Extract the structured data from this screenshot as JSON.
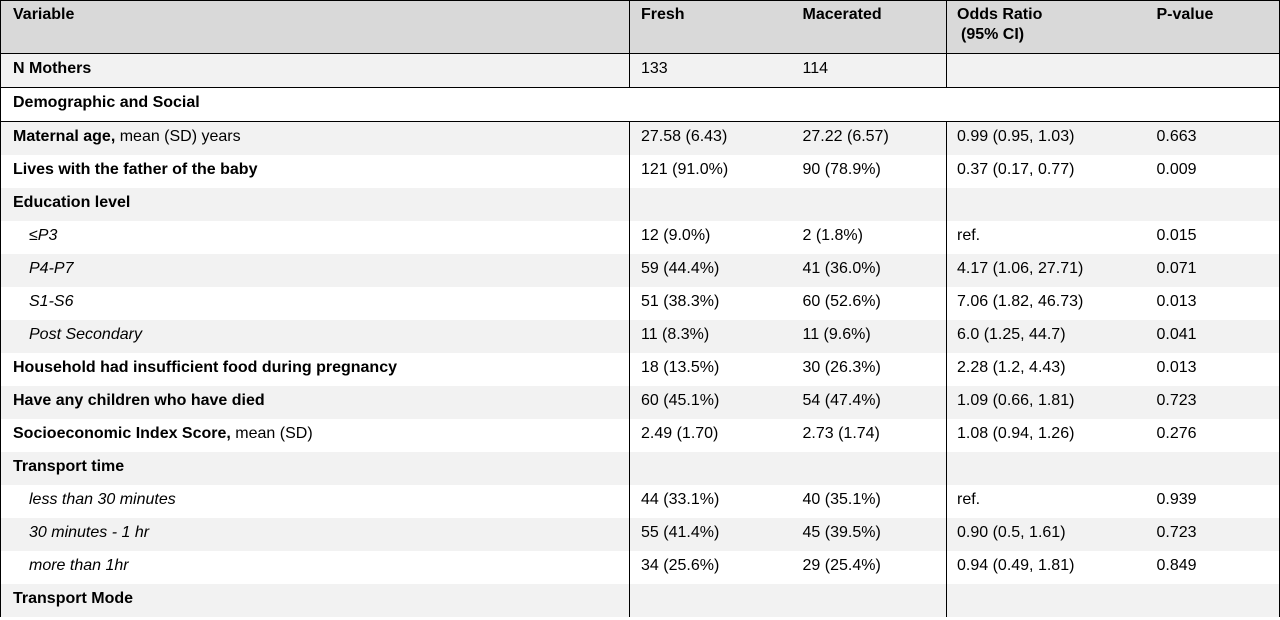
{
  "header": {
    "variable": "Variable",
    "fresh": "Fresh",
    "macerated": "Macerated",
    "odds_ratio": "Odds Ratio",
    "odds_ratio_ci": "(95% CI)",
    "p_value": "P-value"
  },
  "n_mothers": {
    "label": "N Mothers",
    "fresh": "133",
    "macerated": "114",
    "odds_ratio": "",
    "p_value": ""
  },
  "section_title": "Demographic and Social",
  "rows": [
    {
      "bold": "Maternal age,",
      "normal": " mean (SD) years",
      "fresh": "27.58 (6.43)",
      "macerated": "27.22 (6.57)",
      "odds_ratio": "0.99 (0.95, 1.03)",
      "p_value": "0.663"
    },
    {
      "bold": "Lives with the father of the baby",
      "normal": "",
      "fresh": "121 (91.0%)",
      "macerated": "90 (78.9%)",
      "odds_ratio": "0.37 (0.17, 0.77)",
      "p_value": "0.009"
    },
    {
      "bold": "Education level",
      "normal": "",
      "fresh": "",
      "macerated": "",
      "odds_ratio": "",
      "p_value": ""
    },
    {
      "sub": "≤P3",
      "fresh": "12 (9.0%)",
      "macerated": "2 (1.8%)",
      "odds_ratio": "ref.",
      "p_value": "0.015"
    },
    {
      "sub": "P4-P7",
      "fresh": "59 (44.4%)",
      "macerated": "41 (36.0%)",
      "odds_ratio": "4.17 (1.06, 27.71)",
      "p_value": "0.071"
    },
    {
      "sub": "S1-S6",
      "fresh": "51 (38.3%)",
      "macerated": "60 (52.6%)",
      "odds_ratio": "7.06 (1.82, 46.73)",
      "p_value": "0.013"
    },
    {
      "sub": "Post Secondary",
      "fresh": "11 (8.3%)",
      "macerated": "11 (9.6%)",
      "odds_ratio": "6.0 (1.25, 44.7)",
      "p_value": "0.041"
    },
    {
      "bold": "Household had insufficient food during pregnancy",
      "normal": "",
      "fresh": "18 (13.5%)",
      "macerated": "30 (26.3%)",
      "odds_ratio": "2.28 (1.2, 4.43)",
      "p_value": "0.013"
    },
    {
      "bold": "Have any children who have died",
      "normal": "",
      "fresh": "60 (45.1%)",
      "macerated": "54 (47.4%)",
      "odds_ratio": "1.09 (0.66, 1.81)",
      "p_value": "0.723"
    },
    {
      "bold": "Socioeconomic Index Score,",
      "normal": " mean (SD)",
      "fresh": "2.49 (1.70)",
      "macerated": "2.73 (1.74)",
      "odds_ratio": "1.08 (0.94, 1.26)",
      "p_value": "0.276"
    },
    {
      "bold": "Transport time",
      "normal": "",
      "fresh": "",
      "macerated": "",
      "odds_ratio": "",
      "p_value": ""
    },
    {
      "sub": "less than 30 minutes",
      "fresh": "44 (33.1%)",
      "macerated": "40 (35.1%)",
      "odds_ratio": "ref.",
      "p_value": "0.939"
    },
    {
      "sub": "30 minutes - 1 hr",
      "fresh": "55 (41.4%)",
      "macerated": "45 (39.5%)",
      "odds_ratio": "0.90 (0.5, 1.61)",
      "p_value": "0.723"
    },
    {
      "sub": "more than 1hr",
      "fresh": "34 (25.6%)",
      "macerated": "29 (25.4%)",
      "odds_ratio": "0.94 (0.49, 1.81)",
      "p_value": "0.849"
    },
    {
      "bold": "Transport Mode",
      "normal": "",
      "fresh": "",
      "macerated": "",
      "odds_ratio": "",
      "p_value": ""
    }
  ]
}
